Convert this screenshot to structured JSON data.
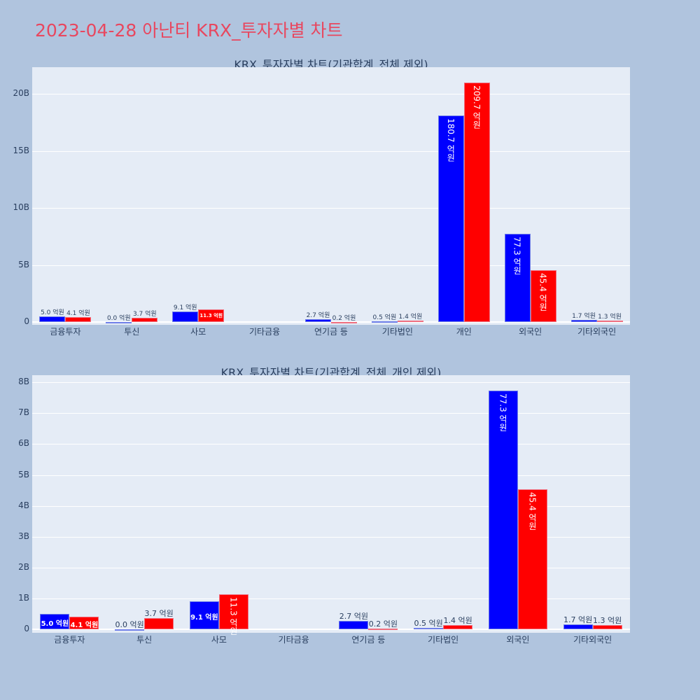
{
  "title": "2023-04-28 아난티 KRX_투자자별 차트",
  "colors": {
    "title": "#e8475f",
    "background": "#b0c4de",
    "plot_bg": "#e5ecf6",
    "series_a": "#0000ff",
    "series_b": "#ff0000"
  },
  "chart_data": [
    {
      "type": "bar",
      "title": "KRX_투자자별 차트(기관합계_전체 제외)",
      "categories": [
        "금융투자",
        "투신",
        "사모",
        "기타금융",
        "연기금 등",
        "기타법인",
        "개인",
        "외국인",
        "기타외국인"
      ],
      "series": [
        {
          "name": "blue",
          "color": "#0000ff",
          "values": [
            0.5,
            0.0,
            0.91,
            0.0,
            0.27,
            0.05,
            18.07,
            7.73,
            0.17
          ],
          "labels": [
            "5.0 억원",
            "0.0 억원",
            "9.1 억원",
            "",
            "2.7 억원",
            "0.5 억원",
            "180.7 억원",
            "77.3 억원",
            "1.7 억원"
          ]
        },
        {
          "name": "red",
          "color": "#ff0000",
          "values": [
            0.41,
            0.37,
            1.13,
            0.0,
            0.02,
            0.14,
            20.97,
            4.54,
            0.13
          ],
          "labels": [
            "4.1 억원",
            "3.7 억원",
            "11.3 억원",
            "",
            "0.2 억원",
            "1.4 억원",
            "209.7 억원",
            "45.4 억원",
            "1.3 억원"
          ]
        }
      ],
      "yticks": [
        "0",
        "5B",
        "10B",
        "15B",
        "20B"
      ],
      "ylim": [
        0,
        22.3
      ],
      "xlabel": "",
      "ylabel": "",
      "grid": true,
      "legend": false
    },
    {
      "type": "bar",
      "title": "KRX_투자자별 차트(기관합계_전체_개인 제외)",
      "categories": [
        "금융투자",
        "투신",
        "사모",
        "기타금융",
        "연기금 등",
        "기타법인",
        "외국인",
        "기타외국인"
      ],
      "series": [
        {
          "name": "blue",
          "color": "#0000ff",
          "values": [
            0.5,
            0.0,
            0.91,
            0.0,
            0.27,
            0.05,
            7.73,
            0.17
          ],
          "labels": [
            "5.0 억원",
            "0.0 억원",
            "9.1 억원",
            "",
            "2.7 억원",
            "0.5 억원",
            "77.3 억원",
            "1.7 억원"
          ]
        },
        {
          "name": "red",
          "color": "#ff0000",
          "values": [
            0.41,
            0.37,
            1.13,
            0.0,
            0.02,
            0.14,
            4.54,
            0.13
          ],
          "labels": [
            "4.1 억원",
            "3.7 억원",
            "11.3 억원",
            "",
            "0.2 억원",
            "1.4 억원",
            "45.4 억원",
            "1.3 억원"
          ]
        }
      ],
      "yticks": [
        "0",
        "1B",
        "2B",
        "3B",
        "4B",
        "5B",
        "6B",
        "7B",
        "8B"
      ],
      "ylim": [
        0,
        8.2
      ],
      "xlabel": "",
      "ylabel": "",
      "grid": true,
      "legend": false
    }
  ]
}
